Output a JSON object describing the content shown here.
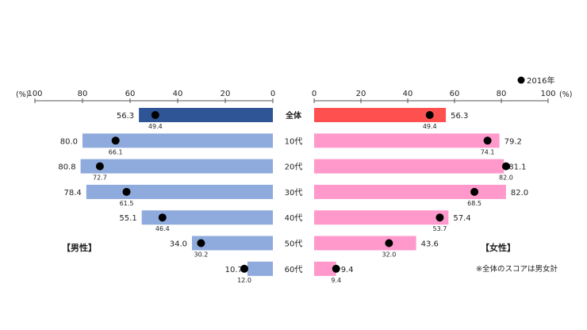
{
  "chart_data": {
    "type": "bar",
    "legend": {
      "marker_label": "2016年",
      "position": "top-right"
    },
    "categories": [
      "全体",
      "10代",
      "20代",
      "30代",
      "40代",
      "50代",
      "60代"
    ],
    "male": {
      "label": "【男性】",
      "percent_left": "(%)",
      "axis_ticks": [
        "100",
        "80",
        "60",
        "40",
        "20",
        "0"
      ],
      "xlim": [
        100,
        0
      ],
      "values": [
        56.3,
        80.0,
        80.8,
        78.4,
        55.1,
        34.0,
        10.7
      ],
      "value_labels": [
        "56.3",
        "80.0",
        "80.8",
        "78.4",
        "55.1",
        "34.0",
        "10.7"
      ],
      "prev_2016": [
        49.4,
        66.1,
        72.7,
        61.5,
        46.4,
        30.2,
        12.0
      ],
      "prev_labels": [
        "49.4",
        "66.1",
        "72.7",
        "61.5",
        "46.4",
        "30.2",
        "12.0"
      ],
      "total_color": "#2f5597",
      "bar_color": "#8faadc"
    },
    "female": {
      "label": "【女性】",
      "percent_right": "(%)",
      "axis_ticks": [
        "0",
        "20",
        "40",
        "60",
        "80",
        "100"
      ],
      "xlim": [
        0,
        100
      ],
      "values": [
        56.3,
        79.2,
        81.1,
        82.0,
        57.4,
        43.6,
        9.4
      ],
      "value_labels": [
        "56.3",
        "79.2",
        "81.1",
        "82.0",
        "57.4",
        "43.6",
        "9.4"
      ],
      "prev_2016": [
        49.4,
        74.1,
        82.0,
        68.5,
        53.7,
        32.0,
        9.4
      ],
      "prev_labels": [
        "49.4",
        "74.1",
        "82.0",
        "68.5",
        "53.7",
        "32.0",
        "9.4"
      ],
      "total_color": "#ff5050",
      "bar_color": "#ff99cc"
    },
    "note": "※全体のスコアは男女計"
  }
}
